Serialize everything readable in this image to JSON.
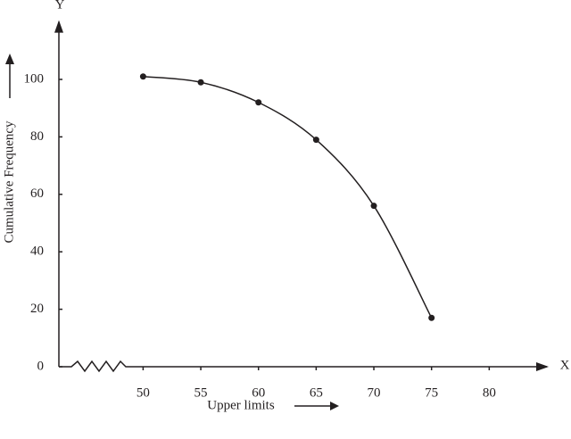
{
  "chart_data": {
    "type": "line",
    "x_axis_name": "X",
    "y_axis_name": "Y",
    "x_label": "Upper limits",
    "y_label": "Cumulative Frequency",
    "x": [
      50,
      55,
      60,
      65,
      70,
      75
    ],
    "series": [
      {
        "color": "#231f20",
        "values": [
          101,
          99,
          92,
          79,
          56,
          17
        ]
      }
    ],
    "xlim": [
      42.7,
      85
    ],
    "xticks": [
      50,
      55,
      60,
      65,
      70,
      75,
      80
    ],
    "ylim": [
      0,
      120
    ],
    "yticks": [
      0,
      20,
      40,
      60,
      80,
      100
    ],
    "grid": false
  }
}
